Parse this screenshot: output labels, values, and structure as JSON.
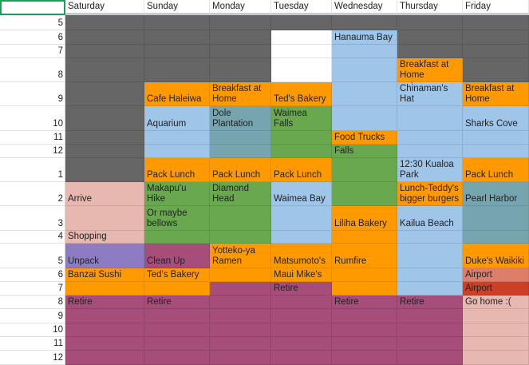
{
  "colors": {
    "d": "#666666",
    "o": "#ff9900",
    "b": "#9fc5e8",
    "t": "#76a5af",
    "g": "#6aa84f",
    "p": "#e6b8af",
    "u": "#8e7cc3",
    "m": "#a64d79",
    "s": "#dd7e6b",
    "r": "#cc4125",
    "w": "#ffffff"
  },
  "hours": [
    "5",
    "6",
    "7",
    "8",
    "9",
    "10",
    "11",
    "12",
    "1",
    "2",
    "3",
    "4",
    "5",
    "6",
    "7",
    "8",
    "9",
    "10",
    "11",
    "12"
  ],
  "days": [
    {
      "name": "Saturday",
      "cells": [
        [
          "",
          "d"
        ],
        [
          "",
          "d"
        ],
        [
          "",
          "d"
        ],
        [
          "",
          "d"
        ],
        [
          "",
          "d"
        ],
        [
          "",
          "d"
        ],
        [
          "",
          "d"
        ],
        [
          "",
          "d"
        ],
        [
          "",
          "d"
        ],
        [
          "Arrive",
          "p"
        ],
        [
          "",
          "p"
        ],
        [
          "Grocery Shopping",
          "p"
        ],
        [
          "Unpack",
          "u"
        ],
        [
          "Banzai Sushi",
          "o"
        ],
        [
          "",
          "o"
        ],
        [
          "Retire",
          "m"
        ],
        [
          "",
          "m"
        ],
        [
          "",
          "m"
        ],
        [
          "",
          "m"
        ],
        [
          "",
          "m"
        ]
      ]
    },
    {
      "name": "Sunday",
      "cells": [
        [
          "",
          "d"
        ],
        [
          "",
          "d"
        ],
        [
          "",
          "d"
        ],
        [
          "",
          "d"
        ],
        [
          "Cafe Haleiwa",
          "o"
        ],
        [
          "Aquarium",
          "b"
        ],
        [
          "",
          "b"
        ],
        [
          "",
          "b"
        ],
        [
          "Pack Lunch",
          "o"
        ],
        [
          "Makapu'u Hike",
          "g"
        ],
        [
          "Or maybe bellows",
          "g"
        ],
        [
          "",
          "g"
        ],
        [
          "Clean Up",
          "m"
        ],
        [
          "Ted's Bakery",
          "o"
        ],
        [
          "",
          "o"
        ],
        [
          "Retire",
          "m"
        ],
        [
          "",
          "m"
        ],
        [
          "",
          "m"
        ],
        [
          "",
          "m"
        ],
        [
          "",
          "m"
        ]
      ]
    },
    {
      "name": "Monday",
      "cells": [
        [
          "",
          "d"
        ],
        [
          "",
          "d"
        ],
        [
          "",
          "d"
        ],
        [
          "",
          "d"
        ],
        [
          "Breakfast at Home",
          "o"
        ],
        [
          "Dole Plantation",
          "t"
        ],
        [
          "",
          "t"
        ],
        [
          "",
          "t"
        ],
        [
          "Pack Lunch",
          "o"
        ],
        [
          "Diamond Head",
          "g"
        ],
        [
          "",
          "g"
        ],
        [
          "",
          "g"
        ],
        [
          "Yotteko-ya Ramen",
          "o"
        ],
        [
          "",
          "o"
        ],
        [
          "",
          "m"
        ],
        [
          "",
          "m"
        ],
        [
          "",
          "m"
        ],
        [
          "",
          "m"
        ],
        [
          "",
          "m"
        ],
        [
          "",
          "m"
        ]
      ]
    },
    {
      "name": "Tuesday",
      "cells": [
        [
          "",
          "d"
        ],
        [
          "",
          "w"
        ],
        [
          "",
          "w"
        ],
        [
          "",
          "w"
        ],
        [
          "Ted's Bakery",
          "o"
        ],
        [
          "Waimea Falls",
          "g"
        ],
        [
          "",
          "g"
        ],
        [
          "",
          "g"
        ],
        [
          "Pack Lunch",
          "o"
        ],
        [
          "Waimea Bay",
          "b"
        ],
        [
          "",
          "b"
        ],
        [
          "",
          "b"
        ],
        [
          "Matsumoto's",
          "o"
        ],
        [
          "Maui Mike's",
          "o"
        ],
        [
          "Retire",
          "m"
        ],
        [
          "",
          "m"
        ],
        [
          "",
          "m"
        ],
        [
          "",
          "m"
        ],
        [
          "",
          "m"
        ],
        [
          "",
          "m"
        ]
      ]
    },
    {
      "name": "Wednesday",
      "cells": [
        [
          "",
          "d"
        ],
        [
          "Hanauma Bay",
          "b"
        ],
        [
          "",
          "b"
        ],
        [
          "",
          "b"
        ],
        [
          "",
          "b"
        ],
        [
          "",
          "b"
        ],
        [
          "Food Trucks",
          "o"
        ],
        [
          "Maunawili Falls",
          "g"
        ],
        [
          "",
          "g"
        ],
        [
          "",
          "g"
        ],
        [
          "Liliha Bakery",
          "o"
        ],
        [
          "",
          "o"
        ],
        [
          "Rumfire",
          "o"
        ],
        [
          "",
          "o"
        ],
        [
          "",
          "o"
        ],
        [
          "Retire",
          "m"
        ],
        [
          "",
          "m"
        ],
        [
          "",
          "m"
        ],
        [
          "",
          "m"
        ],
        [
          "",
          "m"
        ]
      ]
    },
    {
      "name": "Thursday",
      "cells": [
        [
          "",
          "d"
        ],
        [
          "",
          "d"
        ],
        [
          "",
          "d"
        ],
        [
          "Breakfast at Home",
          "o"
        ],
        [
          "Kayak to Chinaman's Hat",
          "b"
        ],
        [
          "",
          "b"
        ],
        [
          "",
          "b"
        ],
        [
          "",
          "b"
        ],
        [
          "12:30 Kualoa Park",
          "b"
        ],
        [
          "Lunch-Teddy's bigger burgers",
          "o"
        ],
        [
          "Kailua Beach",
          "b"
        ],
        [
          "",
          "b"
        ],
        [
          "",
          "b"
        ],
        [
          "",
          "b"
        ],
        [
          "",
          "b"
        ],
        [
          "Retire",
          "m"
        ],
        [
          "",
          "m"
        ],
        [
          "",
          "m"
        ],
        [
          "",
          "m"
        ],
        [
          "",
          "m"
        ]
      ]
    },
    {
      "name": "Friday",
      "cells": [
        [
          "",
          "d"
        ],
        [
          "",
          "d"
        ],
        [
          "",
          "d"
        ],
        [
          "",
          "d"
        ],
        [
          "Breakfast at Home",
          "o"
        ],
        [
          "Sharks Cove",
          "b"
        ],
        [
          "",
          "b"
        ],
        [
          "",
          "b"
        ],
        [
          "Pack Lunch",
          "o"
        ],
        [
          "Pearl Harbor",
          "t"
        ],
        [
          "",
          "t"
        ],
        [
          "",
          "t"
        ],
        [
          "Duke's Waikiki",
          "o"
        ],
        [
          "Travel to Airport",
          "s"
        ],
        [
          "Arrive at Airport",
          "r"
        ],
        [
          "Go home :(",
          "p"
        ],
        [
          "",
          "p"
        ],
        [
          "",
          "p"
        ],
        [
          "",
          "p"
        ],
        [
          "",
          "p"
        ]
      ]
    }
  ]
}
